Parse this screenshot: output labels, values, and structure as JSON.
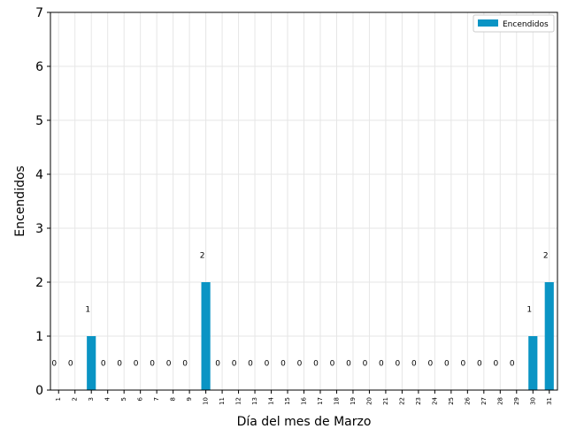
{
  "chart_data": {
    "type": "bar",
    "xlabel": "Día del mes de Marzo",
    "ylabel": "Encendidos",
    "ylim": [
      0,
      7
    ],
    "yticks": [
      "0",
      "1",
      "2",
      "3",
      "4",
      "5",
      "6",
      "7"
    ],
    "grid": true,
    "legend_position": "top-right",
    "categories": [
      "1",
      "2",
      "3",
      "4",
      "5",
      "6",
      "7",
      "8",
      "9",
      "10",
      "11",
      "12",
      "13",
      "14",
      "15",
      "16",
      "17",
      "18",
      "19",
      "20",
      "21",
      "22",
      "23",
      "24",
      "25",
      "26",
      "27",
      "28",
      "29",
      "30",
      "31"
    ],
    "series": [
      {
        "name": "Encendidos",
        "color": "#0a94c4",
        "values": [
          0,
          0,
          1,
          0,
          0,
          0,
          0,
          0,
          0,
          2,
          0,
          0,
          0,
          0,
          0,
          0,
          0,
          0,
          0,
          0,
          0,
          0,
          0,
          0,
          0,
          0,
          0,
          0,
          0,
          1,
          2
        ]
      }
    ]
  }
}
